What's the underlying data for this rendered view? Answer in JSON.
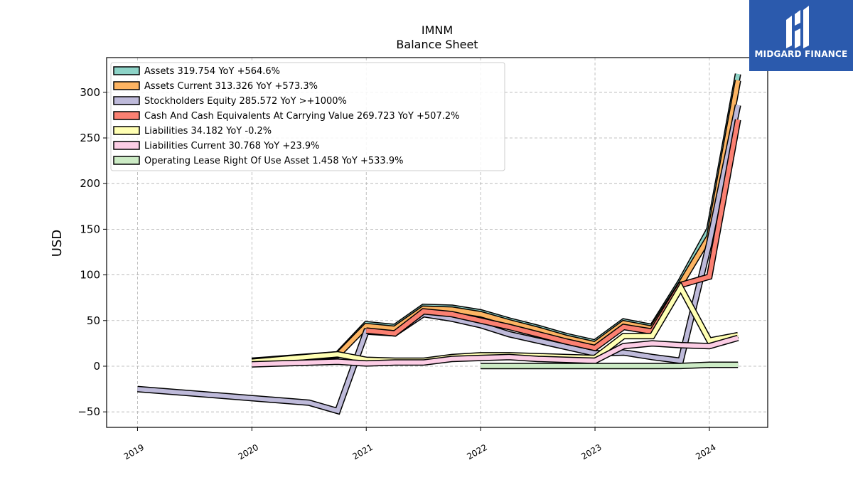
{
  "chart_data": {
    "type": "line",
    "title": "IMNM",
    "subtitle": "Balance  Sheet",
    "ylabel": "USD",
    "xlabel": "",
    "ylim": [
      -67,
      338
    ],
    "xlim": [
      2018.73,
      2024.51
    ],
    "yticks": [
      -50,
      0,
      50,
      100,
      150,
      200,
      250,
      300
    ],
    "ytick_labels": [
      "−50",
      "0",
      "50",
      "100",
      "150",
      "200",
      "250",
      "300"
    ],
    "xticks": [
      2019,
      2020,
      2021,
      2022,
      2023,
      2024
    ],
    "xtick_labels": [
      "2019",
      "2020",
      "2021",
      "2022",
      "2023",
      "2024"
    ],
    "grid": true,
    "legend_position": "top-left",
    "series": [
      {
        "name": "Assets",
        "label": "Assets  319.754 YoY +564.6%",
        "color": "#8dd3c7",
        "x": [
          2020.0,
          2020.75,
          2021.0,
          2021.25,
          2021.5,
          2021.75,
          2022.0,
          2022.25,
          2022.5,
          2022.75,
          2023.0,
          2023.25,
          2023.5,
          2023.75,
          2024.0,
          2024.25
        ],
        "y": [
          6,
          13,
          46,
          43,
          65,
          64,
          59,
          50,
          42,
          33,
          26,
          49,
          43,
          93,
          150,
          320
        ]
      },
      {
        "name": "Assets Current",
        "label": "Assets Current  313.326 YoY +573.3%",
        "color": "#fdb462",
        "x": [
          2020.0,
          2020.75,
          2021.0,
          2021.25,
          2021.5,
          2021.75,
          2022.0,
          2022.25,
          2022.5,
          2022.75,
          2023.0,
          2023.25,
          2023.5,
          2023.75,
          2024.0,
          2024.25
        ],
        "y": [
          5,
          12,
          44,
          41,
          63,
          62,
          57,
          48,
          40,
          31,
          24,
          47,
          41,
          90,
          142,
          313
        ]
      },
      {
        "name": "Stockholders Equity",
        "label": "Stockholders Equity  285.572 YoY >+1000%",
        "color": "#bebada",
        "x": [
          2019.0,
          2020.5,
          2020.75,
          2021.0,
          2021.25,
          2021.5,
          2021.75,
          2022.0,
          2022.25,
          2022.5,
          2022.75,
          2023.0,
          2023.25,
          2023.5,
          2023.75,
          2024.0,
          2024.25
        ],
        "y": [
          -25,
          -40,
          -49,
          38,
          36,
          57,
          52,
          45,
          35,
          28,
          21,
          14,
          15,
          10,
          6,
          135,
          286
        ]
      },
      {
        "name": "Cash And Cash Equivalents At Carrying Value",
        "label": "Cash And Cash Equivalents At Carrying Value  269.723 YoY +507.2%",
        "color": "#fb8072",
        "x": [
          2021.0,
          2021.25,
          2021.5,
          2021.75,
          2022.0,
          2022.25,
          2022.5,
          2022.75,
          2023.0,
          2023.25,
          2023.5,
          2023.75,
          2024.0,
          2024.25
        ],
        "y": [
          39,
          36,
          60,
          57,
          50,
          43,
          35,
          27,
          20,
          43,
          38,
          89,
          98,
          270
        ]
      },
      {
        "name": "Liabilities",
        "label": "Liabilities  34.182 YoY -0.2%",
        "color": "#ffffb3",
        "x": [
          2020.0,
          2020.75,
          2021.0,
          2021.25,
          2021.5,
          2021.75,
          2022.0,
          2022.25,
          2022.5,
          2022.75,
          2023.0,
          2023.25,
          2023.5,
          2023.75,
          2024.0,
          2024.25
        ],
        "y": [
          5,
          13,
          7,
          6,
          6,
          10,
          12,
          12,
          11,
          10,
          9,
          33,
          33,
          86,
          28,
          34
        ]
      },
      {
        "name": "Liabilities Current",
        "label": "Liabilities Current  30.768 YoY +23.9%",
        "color": "#fccde5",
        "x": [
          2020.0,
          2020.75,
          2021.0,
          2021.25,
          2021.5,
          2021.75,
          2022.0,
          2022.25,
          2022.5,
          2022.75,
          2023.0,
          2023.25,
          2023.5,
          2023.75,
          2024.0,
          2024.25
        ],
        "y": [
          2,
          5,
          3,
          4,
          4,
          8,
          9,
          10,
          8,
          7,
          6,
          22,
          25,
          23,
          22,
          31
        ]
      },
      {
        "name": "Operating Lease Right Of Use Asset",
        "label": "Operating Lease Right Of Use Asset  1.458 YoY +533.9%",
        "color": "#ccebc5",
        "x": [
          2022.0,
          2022.25,
          2022.5,
          2022.75,
          2023.0,
          2023.25,
          2023.5,
          2023.75,
          2024.0,
          2024.25
        ],
        "y": [
          0.2,
          0.2,
          0.2,
          0.2,
          0.2,
          0.2,
          0.2,
          0.3,
          1.5,
          1.5
        ]
      }
    ]
  },
  "logo": {
    "text": "MIDGARD FINANCE",
    "background": "#2b5aad"
  }
}
